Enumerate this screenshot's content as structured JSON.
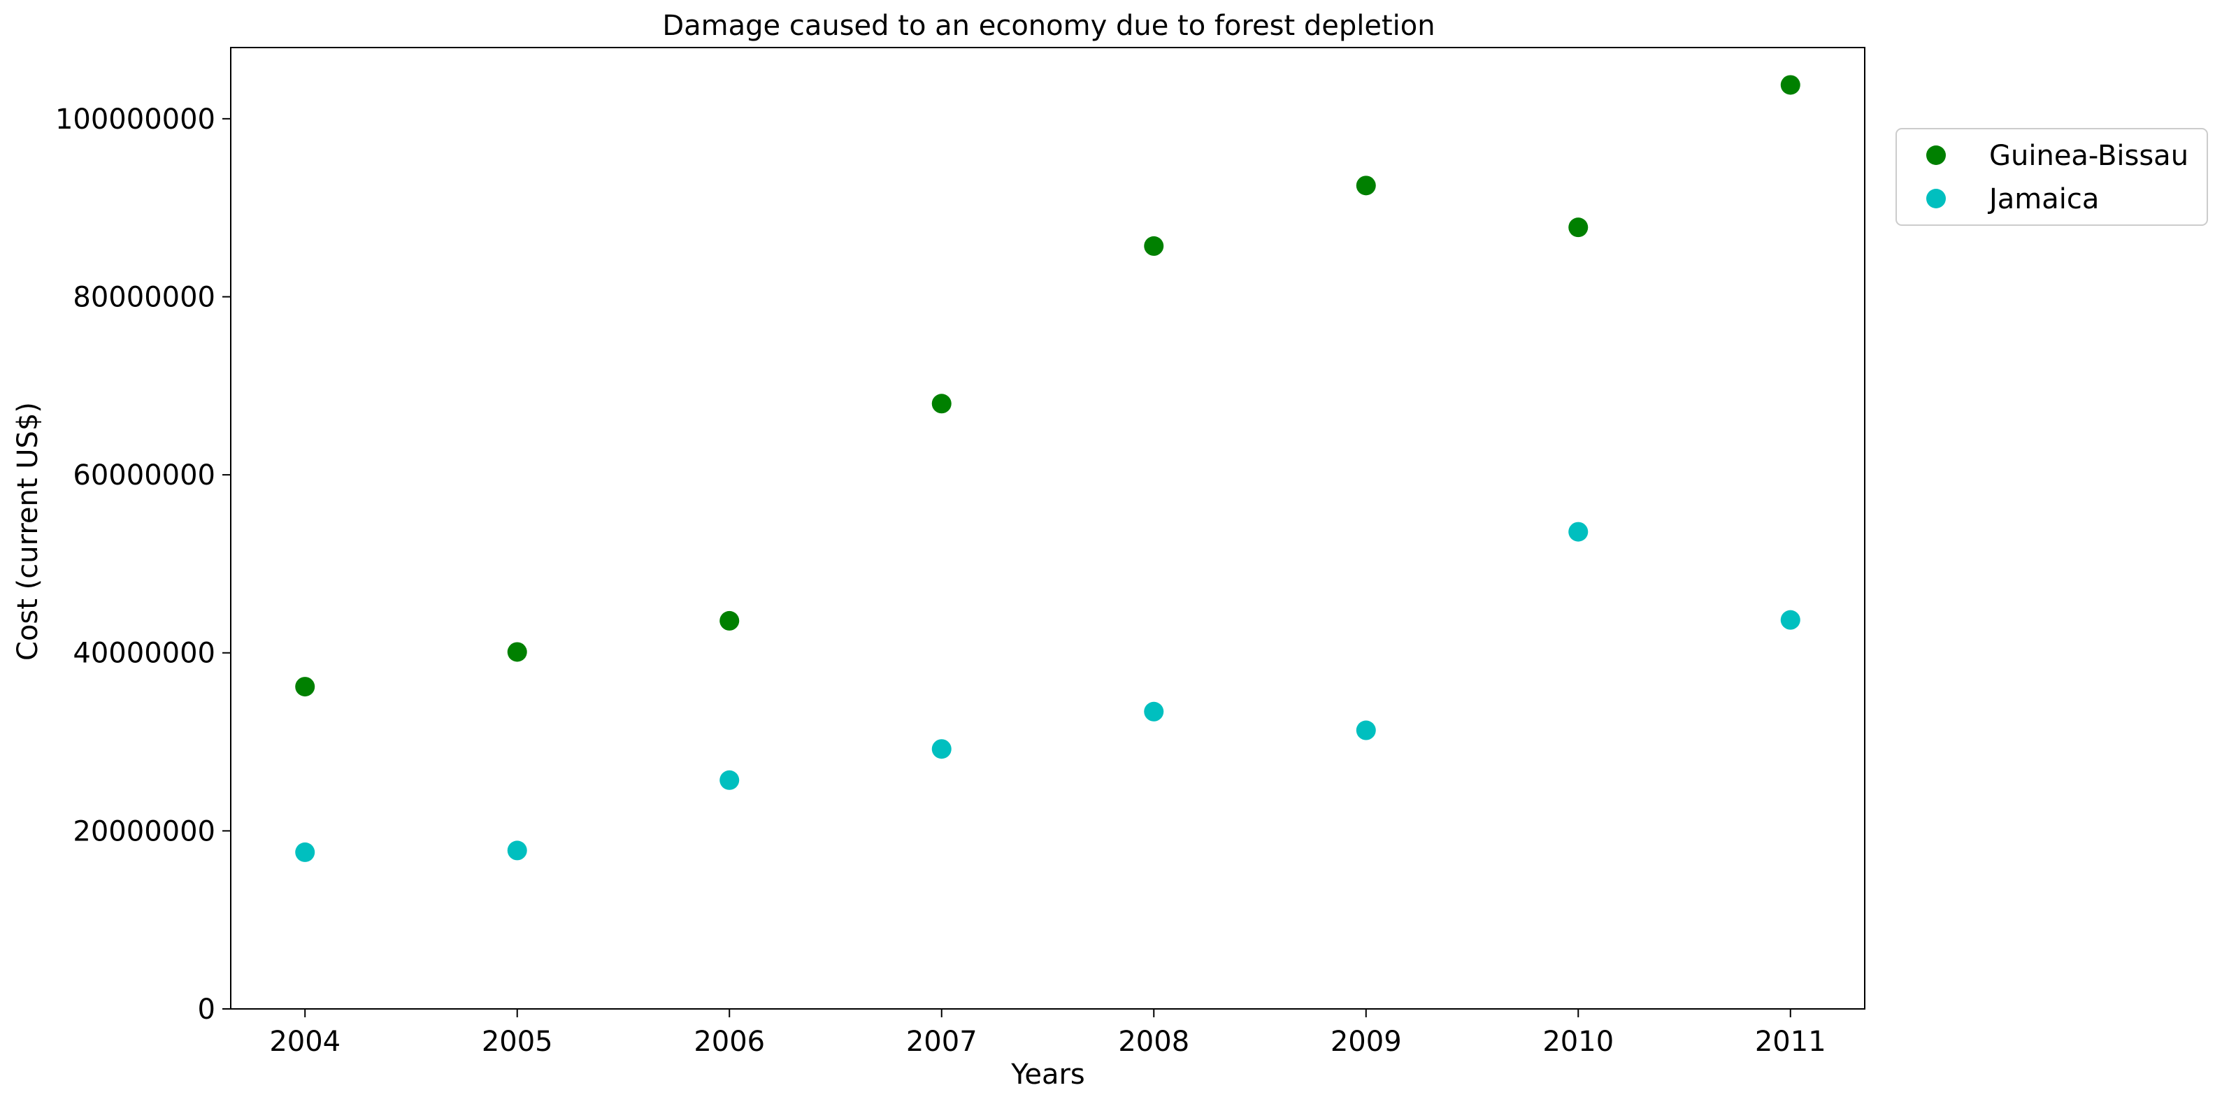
{
  "chart_data": {
    "type": "scatter",
    "title": "Damage caused to an economy due to forest depletion",
    "xlabel": "Years",
    "ylabel": "Cost (current US$)",
    "x": [
      2004,
      2005,
      2006,
      2007,
      2008,
      2009,
      2010,
      2011
    ],
    "xlim": [
      2003.65,
      2011.35
    ],
    "ylim": [
      0,
      108000000
    ],
    "yticks": [
      0,
      20000000,
      40000000,
      60000000,
      80000000,
      100000000
    ],
    "grid": false,
    "legend": "outside-top-right",
    "series": [
      {
        "name": "Guinea-Bissau",
        "color": "#008000",
        "values": [
          36200000,
          40100000,
          43600000,
          68000000,
          85700000,
          92500000,
          87800000,
          103800000
        ]
      },
      {
        "name": "Jamaica",
        "color": "#00bfbf",
        "values": [
          17600000,
          17800000,
          25700000,
          29200000,
          33400000,
          31300000,
          53600000,
          43700000
        ]
      }
    ]
  }
}
